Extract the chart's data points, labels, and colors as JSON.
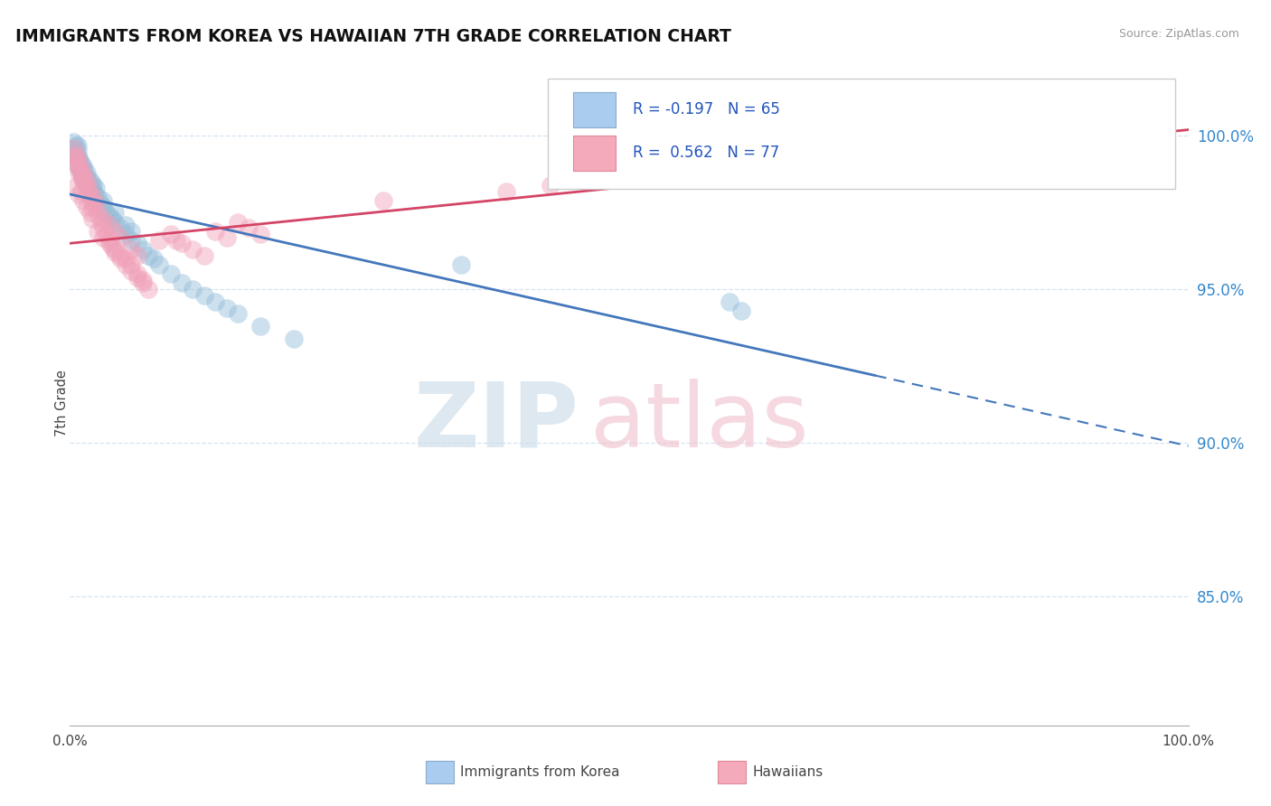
{
  "title": "IMMIGRANTS FROM KOREA VS HAWAIIAN 7TH GRADE CORRELATION CHART",
  "source_text": "Source: ZipAtlas.com",
  "ylabel": "7th Grade",
  "y_tick_values": [
    0.85,
    0.9,
    0.95,
    1.0
  ],
  "xlim": [
    0.0,
    1.0
  ],
  "ylim": [
    0.808,
    1.018
  ],
  "blue_color": "#92bcd8",
  "pink_color": "#f0a0b8",
  "trend_blue_color": "#4477bb",
  "trend_pink_color": "#d44466",
  "grid_color": "#ccddee",
  "bottom_legend_blue": "Immigrants from Korea",
  "bottom_legend_pink": "Hawaiians",
  "blue_trend_start_x": 0.0,
  "blue_trend_solid_end_x": 0.72,
  "blue_trend_end_x": 1.0,
  "blue_trend_start_y": 0.981,
  "blue_trend_end_y": 0.899,
  "pink_trend_start_x": 0.0,
  "pink_trend_end_x": 1.0,
  "pink_trend_start_y": 0.965,
  "pink_trend_end_y": 1.002,
  "blue_scatter_x": [
    0.003,
    0.004,
    0.005,
    0.005,
    0.006,
    0.007,
    0.007,
    0.008,
    0.008,
    0.009,
    0.01,
    0.01,
    0.011,
    0.012,
    0.012,
    0.013,
    0.014,
    0.015,
    0.015,
    0.016,
    0.017,
    0.018,
    0.019,
    0.02,
    0.021,
    0.022,
    0.023,
    0.025,
    0.027,
    0.03,
    0.032,
    0.035,
    0.038,
    0.04,
    0.045,
    0.05,
    0.055,
    0.06,
    0.065,
    0.07,
    0.075,
    0.08,
    0.09,
    0.1,
    0.11,
    0.12,
    0.13,
    0.14,
    0.15,
    0.17,
    0.2,
    0.007,
    0.008,
    0.009,
    0.01,
    0.011,
    0.015,
    0.02,
    0.03,
    0.04,
    0.05,
    0.055,
    0.35,
    0.59,
    0.6
  ],
  "blue_scatter_y": [
    0.998,
    0.996,
    0.997,
    0.994,
    0.993,
    0.997,
    0.995,
    0.993,
    0.99,
    0.992,
    0.989,
    0.991,
    0.988,
    0.99,
    0.986,
    0.989,
    0.987,
    0.985,
    0.988,
    0.984,
    0.986,
    0.983,
    0.985,
    0.982,
    0.984,
    0.981,
    0.983,
    0.98,
    0.978,
    0.977,
    0.975,
    0.974,
    0.973,
    0.972,
    0.97,
    0.968,
    0.966,
    0.965,
    0.963,
    0.961,
    0.96,
    0.958,
    0.955,
    0.952,
    0.95,
    0.948,
    0.946,
    0.944,
    0.942,
    0.938,
    0.934,
    0.992,
    0.99,
    0.989,
    0.988,
    0.987,
    0.985,
    0.983,
    0.979,
    0.975,
    0.971,
    0.969,
    0.958,
    0.946,
    0.943
  ],
  "pink_scatter_x": [
    0.003,
    0.004,
    0.005,
    0.006,
    0.006,
    0.007,
    0.008,
    0.009,
    0.01,
    0.011,
    0.011,
    0.012,
    0.013,
    0.014,
    0.015,
    0.016,
    0.017,
    0.018,
    0.019,
    0.02,
    0.021,
    0.022,
    0.024,
    0.026,
    0.028,
    0.03,
    0.032,
    0.035,
    0.038,
    0.04,
    0.045,
    0.05,
    0.055,
    0.06,
    0.065,
    0.07,
    0.08,
    0.09,
    0.1,
    0.11,
    0.12,
    0.13,
    0.14,
    0.15,
    0.16,
    0.17,
    0.006,
    0.008,
    0.01,
    0.012,
    0.015,
    0.018,
    0.02,
    0.025,
    0.03,
    0.035,
    0.04,
    0.045,
    0.05,
    0.055,
    0.06,
    0.065,
    0.03,
    0.035,
    0.04,
    0.045,
    0.055,
    0.06,
    0.095,
    0.28,
    0.39,
    0.43,
    0.5,
    0.57,
    0.62,
    0.68,
    0.98
  ],
  "pink_scatter_y": [
    0.996,
    0.993,
    0.994,
    0.991,
    0.993,
    0.99,
    0.988,
    0.991,
    0.989,
    0.986,
    0.988,
    0.985,
    0.987,
    0.984,
    0.982,
    0.985,
    0.983,
    0.981,
    0.979,
    0.977,
    0.98,
    0.978,
    0.976,
    0.974,
    0.972,
    0.97,
    0.968,
    0.966,
    0.964,
    0.962,
    0.96,
    0.958,
    0.956,
    0.954,
    0.952,
    0.95,
    0.966,
    0.968,
    0.965,
    0.963,
    0.961,
    0.969,
    0.967,
    0.972,
    0.97,
    0.968,
    0.984,
    0.981,
    0.982,
    0.979,
    0.977,
    0.975,
    0.973,
    0.969,
    0.967,
    0.965,
    0.963,
    0.961,
    0.96,
    0.958,
    0.955,
    0.953,
    0.973,
    0.971,
    0.969,
    0.967,
    0.963,
    0.961,
    0.966,
    0.979,
    0.982,
    0.984,
    0.988,
    0.99,
    0.993,
    0.995,
    1.001
  ]
}
